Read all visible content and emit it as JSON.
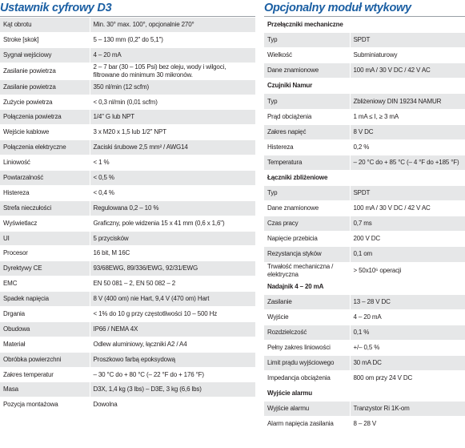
{
  "left": {
    "title": "Ustawnik cyfrowy D3",
    "rows": [
      [
        "Kąt obrotu",
        "Min. 30° max. 100°, opcjonalnie 270°"
      ],
      [
        "Stroke [skok]",
        "5 – 130 mm (0,2\" do 5,1\")"
      ],
      [
        "Sygnał wejściowy",
        "4 – 20 mA"
      ],
      [
        "Zasilanie powietrza",
        "2 – 7 bar (30 – 105 Psi) bez oleju, wody i wilgoci, filtrowane do minimum 30 mikronów."
      ],
      [
        "Zasilanie powietrza",
        "350 nl/min (12 scfm)"
      ],
      [
        "Zużycie powietrza",
        "< 0,3 nl/min (0,01 scfm)"
      ],
      [
        "Połączenia powietrza",
        "1/4\" G lub NPT"
      ],
      [
        "Wejście kablowe",
        "3 x M20 x 1,5 lub 1/2\" NPT"
      ],
      [
        "Połączenia elektryczne",
        "Zaciski śrubowe 2,5 mm² / AWG14"
      ],
      [
        "Liniowość",
        "< 1 %"
      ],
      [
        "Powtarzalność",
        "< 0,5 %"
      ],
      [
        "Histereza",
        "< 0,4 %"
      ],
      [
        "Strefa nieczułości",
        "Regulowana 0,2 – 10 %"
      ],
      [
        "Wyświetlacz",
        "Graficzny, pole widzenia 15 x 41 mm (0,6 x 1,6\")"
      ],
      [
        "UI",
        "5 przycisków"
      ],
      [
        "Procesor",
        "16 bit, M 16C"
      ],
      [
        "Dyrektywy CE",
        "93/68EWG, 89/336/EWG, 92/31/EWG"
      ],
      [
        "EMC",
        "EN 50 081 – 2, EN 50 082 – 2"
      ],
      [
        "Spadek napięcia",
        "8 V (400 om) nie Hart, 9,4 V (470 om) Hart"
      ],
      [
        "Drgania",
        "< 1% do 10 g przy częstotliwości 10 – 500 Hz"
      ],
      [
        "Obudowa",
        "IP66 / NEMA 4X"
      ],
      [
        "Materiał",
        "Odlew aluminiowy, łączniki A2 / A4"
      ],
      [
        "Obróbka powierzchni",
        "Proszkowo farbą epoksydową"
      ],
      [
        "Zakres temperatur",
        "– 30 °C do + 80 °C (– 22 °F do + 176 °F)"
      ],
      [
        "Masa",
        "D3X, 1,4 kg (3 lbs) – D3E, 3 kg (6,6 lbs)"
      ],
      [
        "Pozycja montażowa",
        "Dowolna"
      ]
    ]
  },
  "right": {
    "title": "Opcjonalny moduł wtykowy",
    "sections": [
      {
        "heading": "Przełączniki mechaniczne",
        "rows": [
          [
            "Typ",
            "SPDT"
          ],
          [
            "Wielkość",
            "Subminiaturowy"
          ],
          [
            "Dane znamionowe",
            "100 mA / 30 V DC / 42 V AC"
          ]
        ]
      },
      {
        "heading": "Czujniki Namur",
        "rows": [
          [
            "Typ",
            "Zbliżeniowy DIN 19234 NAMUR"
          ],
          [
            "Prąd obciążenia",
            "1 mA ≤ I, ≥ 3 mA"
          ],
          [
            "Zakres napięć",
            "8 V DC"
          ],
          [
            "Histereza",
            "0,2 %"
          ],
          [
            "Temperatura",
            "– 20 °C do + 85 °C (– 4 °F do +185 °F)"
          ]
        ]
      },
      {
        "heading": "Łączniki zbliżeniowe",
        "rows": [
          [
            "Typ",
            "SPDT"
          ],
          [
            "Dane znamionowe",
            "100 mA / 30 V DC / 42 V AC"
          ],
          [
            "Czas pracy",
            "0,7 ms"
          ],
          [
            "Napięcie przebicia",
            "200 V DC"
          ],
          [
            "Rezystancja styków",
            "0,1 om"
          ],
          [
            "Trwałość mechaniczna / elektryczna",
            "> 50x10⁶ operacji"
          ]
        ]
      },
      {
        "heading": "Nadajnik 4 – 20 mA",
        "rows": [
          [
            "Zasilanie",
            "13 – 28 V DC"
          ],
          [
            "Wyjście",
            "4 – 20 mA"
          ],
          [
            "Rozdzielczość",
            "0,1 %"
          ],
          [
            "Pełny zakres liniowości",
            "+/– 0,5 %"
          ],
          [
            "Limit prądu wyjściowego",
            "30 mA DC"
          ],
          [
            "Impedancja obciążenia",
            "800 om przy 24 V DC"
          ]
        ]
      },
      {
        "heading": "Wyjście alarmu",
        "rows": [
          [
            "Wyjście alarmu",
            "Tranzystor Ri 1K-om"
          ],
          [
            "Alarm napięcia zasilania",
            "8 – 28 V"
          ]
        ]
      }
    ]
  }
}
